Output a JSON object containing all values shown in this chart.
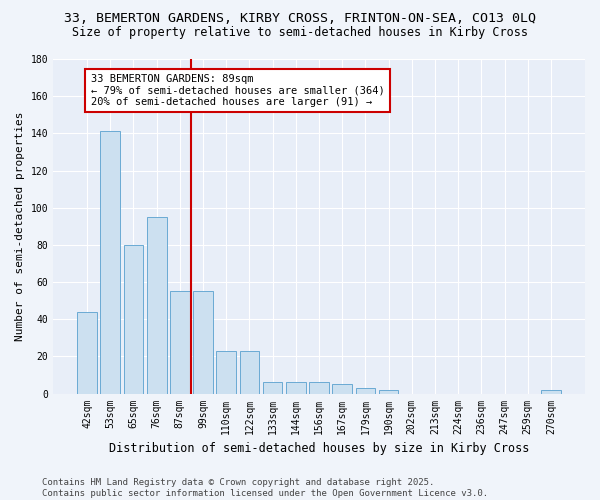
{
  "title_line1": "33, BEMERTON GARDENS, KIRBY CROSS, FRINTON-ON-SEA, CO13 0LQ",
  "title_line2": "Size of property relative to semi-detached houses in Kirby Cross",
  "xlabel": "Distribution of semi-detached houses by size in Kirby Cross",
  "ylabel": "Number of semi-detached properties",
  "categories": [
    "42sqm",
    "53sqm",
    "65sqm",
    "76sqm",
    "87sqm",
    "99sqm",
    "110sqm",
    "122sqm",
    "133sqm",
    "144sqm",
    "156sqm",
    "167sqm",
    "179sqm",
    "190sqm",
    "202sqm",
    "213sqm",
    "224sqm",
    "236sqm",
    "247sqm",
    "259sqm",
    "270sqm"
  ],
  "values": [
    44,
    141,
    80,
    95,
    55,
    55,
    23,
    23,
    6,
    6,
    6,
    5,
    3,
    2,
    0,
    0,
    0,
    0,
    0,
    0,
    2
  ],
  "bar_color": "#cce0f0",
  "bar_edge_color": "#6aaad4",
  "red_line_index": 4.5,
  "annotation_title": "33 BEMERTON GARDENS: 89sqm",
  "annotation_line2": "← 79% of semi-detached houses are smaller (364)",
  "annotation_line3": "20% of semi-detached houses are larger (91) →",
  "annotation_box_color": "#ffffff",
  "annotation_box_edge": "#cc0000",
  "red_line_color": "#cc0000",
  "ylim": [
    0,
    180
  ],
  "yticks": [
    0,
    20,
    40,
    60,
    80,
    100,
    120,
    140,
    160,
    180
  ],
  "footer_line1": "Contains HM Land Registry data © Crown copyright and database right 2025.",
  "footer_line2": "Contains public sector information licensed under the Open Government Licence v3.0.",
  "bg_color": "#f0f4fa",
  "plot_bg_color": "#e8eef8",
  "title_fontsize": 9.5,
  "subtitle_fontsize": 8.5,
  "axis_label_fontsize": 8,
  "tick_fontsize": 7,
  "annotation_fontsize": 7.5,
  "footer_fontsize": 6.5,
  "grid_color": "#ffffff"
}
